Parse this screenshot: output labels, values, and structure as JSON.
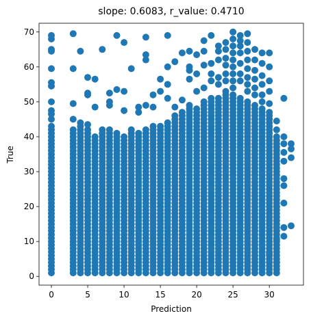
{
  "chart_data": {
    "type": "scatter",
    "title": "slope: 0.6083, r_value: 0.4710",
    "xlabel": "Prediction",
    "ylabel": "True",
    "xlim": [
      -1.7,
      34.7
    ],
    "ylim": [
      -2.5,
      72.5
    ],
    "xticks": [
      0,
      5,
      10,
      15,
      20,
      25,
      30
    ],
    "yticks": [
      0,
      10,
      20,
      30,
      40,
      50,
      60,
      70
    ],
    "grid": false,
    "marker_color": "#1f77b4",
    "columns": [
      {
        "x": 0.0,
        "ymax": 43.5
      },
      {
        "x": 3.0,
        "ymax": 42.5
      },
      {
        "x": 4.0,
        "ymax": 43.5
      },
      {
        "x": 5.0,
        "ymax": 42.0
      },
      {
        "x": 6.0,
        "ymax": 40.0
      },
      {
        "x": 7.0,
        "ymax": 41.0
      },
      {
        "x": 8.0,
        "ymax": 42.0
      },
      {
        "x": 9.0,
        "ymax": 41.0
      },
      {
        "x": 10.0,
        "ymax": 40.0
      },
      {
        "x": 11.0,
        "ymax": 42.0
      },
      {
        "x": 12.0,
        "ymax": 41.0
      },
      {
        "x": 13.0,
        "ymax": 42.0
      },
      {
        "x": 14.0,
        "ymax": 43.5
      },
      {
        "x": 15.0,
        "ymax": 43.0
      },
      {
        "x": 16.0,
        "ymax": 44.0
      },
      {
        "x": 17.0,
        "ymax": 46.0
      },
      {
        "x": 18.0,
        "ymax": 47.0
      },
      {
        "x": 19.0,
        "ymax": 49.0
      },
      {
        "x": 20.0,
        "ymax": 48.0
      },
      {
        "x": 21.0,
        "ymax": 50.0
      },
      {
        "x": 22.0,
        "ymax": 51.0
      },
      {
        "x": 23.0,
        "ymax": 51.5
      },
      {
        "x": 24.0,
        "ymax": 53.0
      },
      {
        "x": 25.0,
        "ymax": 52.0
      },
      {
        "x": 26.0,
        "ymax": 51.0
      },
      {
        "x": 27.0,
        "ymax": 50.0
      },
      {
        "x": 28.0,
        "ymax": 49.0
      },
      {
        "x": 29.0,
        "ymax": 48.0
      },
      {
        "x": 30.0,
        "ymax": 47.0
      },
      {
        "x": 31.0,
        "ymax": 40.5
      }
    ],
    "points": [
      [
        0,
        69
      ],
      [
        0,
        68
      ],
      [
        0,
        65
      ],
      [
        0,
        64.5
      ],
      [
        0,
        59.5
      ],
      [
        0,
        55.5
      ],
      [
        0,
        54.5
      ],
      [
        0,
        50
      ],
      [
        0,
        47.5
      ],
      [
        0,
        46.5
      ],
      [
        0,
        45
      ],
      [
        3,
        69.5
      ],
      [
        3,
        59.5
      ],
      [
        3,
        49.5
      ],
      [
        3,
        45
      ],
      [
        4,
        64.5
      ],
      [
        4,
        44
      ],
      [
        5,
        57
      ],
      [
        5,
        52.5
      ],
      [
        5,
        52
      ],
      [
        5,
        43.5
      ],
      [
        6,
        56.5
      ],
      [
        6,
        48.5
      ],
      [
        7,
        65
      ],
      [
        7,
        42
      ],
      [
        8,
        52.5
      ],
      [
        8,
        50
      ],
      [
        8,
        49
      ],
      [
        9,
        69
      ],
      [
        9,
        53.5
      ],
      [
        10,
        67
      ],
      [
        10,
        53
      ],
      [
        10,
        47.5
      ],
      [
        11,
        59.5
      ],
      [
        12,
        48.5
      ],
      [
        12,
        47
      ],
      [
        13,
        68.5
      ],
      [
        13,
        63.5
      ],
      [
        13,
        62
      ],
      [
        13,
        49
      ],
      [
        14,
        52
      ],
      [
        14,
        48.5
      ],
      [
        15,
        56.5
      ],
      [
        15,
        53
      ],
      [
        16,
        69
      ],
      [
        16,
        60
      ],
      [
        16,
        55
      ],
      [
        16,
        51
      ],
      [
        17,
        61.5
      ],
      [
        17,
        48.5
      ],
      [
        18,
        64
      ],
      [
        18,
        50.5
      ],
      [
        19,
        64.5
      ],
      [
        19,
        60
      ],
      [
        19,
        59
      ],
      [
        19,
        56.5
      ],
      [
        20,
        63.5
      ],
      [
        20,
        58
      ],
      [
        20,
        53
      ],
      [
        21,
        67.5
      ],
      [
        21,
        64.5
      ],
      [
        21,
        60.5
      ],
      [
        21,
        54
      ],
      [
        22,
        69
      ],
      [
        22,
        61
      ],
      [
        22,
        58
      ],
      [
        22,
        56
      ],
      [
        23,
        66
      ],
      [
        23,
        64.5
      ],
      [
        23,
        62
      ],
      [
        23,
        57
      ],
      [
        23,
        55
      ],
      [
        24,
        67
      ],
      [
        24,
        65
      ],
      [
        24,
        62.5
      ],
      [
        24,
        60.5
      ],
      [
        24,
        58
      ],
      [
        24,
        56
      ],
      [
        25,
        70
      ],
      [
        25,
        68
      ],
      [
        25,
        66
      ],
      [
        25,
        64
      ],
      [
        25,
        62
      ],
      [
        25,
        60
      ],
      [
        25,
        58
      ],
      [
        25,
        56
      ],
      [
        25,
        54
      ],
      [
        26,
        69
      ],
      [
        26,
        67.5
      ],
      [
        26,
        66
      ],
      [
        26,
        64
      ],
      [
        26,
        61
      ],
      [
        26,
        58
      ],
      [
        26,
        56
      ],
      [
        27,
        69.5
      ],
      [
        27,
        67
      ],
      [
        27,
        64.5
      ],
      [
        27,
        62
      ],
      [
        27,
        59.5
      ],
      [
        27,
        57
      ],
      [
        27,
        55
      ],
      [
        27,
        53
      ],
      [
        28,
        65
      ],
      [
        28,
        62
      ],
      [
        28,
        59
      ],
      [
        28,
        56.5
      ],
      [
        28,
        54
      ],
      [
        28,
        52
      ],
      [
        29,
        64
      ],
      [
        29,
        61
      ],
      [
        29,
        57.5
      ],
      [
        29,
        55
      ],
      [
        29,
        52
      ],
      [
        29,
        50
      ],
      [
        30,
        64
      ],
      [
        30,
        60
      ],
      [
        30,
        56
      ],
      [
        30,
        53
      ],
      [
        30,
        49.5
      ],
      [
        31,
        44.5
      ],
      [
        31,
        42
      ],
      [
        31,
        38
      ],
      [
        31,
        20
      ],
      [
        31,
        14
      ],
      [
        31,
        10.5
      ],
      [
        31,
        4
      ],
      [
        32,
        51
      ],
      [
        32,
        40
      ],
      [
        32,
        38
      ],
      [
        32,
        35.5
      ],
      [
        32,
        33
      ],
      [
        32,
        28
      ],
      [
        32,
        26
      ],
      [
        32,
        21
      ],
      [
        32,
        14
      ],
      [
        32,
        11.5
      ],
      [
        33,
        38
      ],
      [
        33,
        36.5
      ],
      [
        33,
        34
      ],
      [
        33,
        14.5
      ],
      [
        30,
        6.5
      ]
    ]
  }
}
